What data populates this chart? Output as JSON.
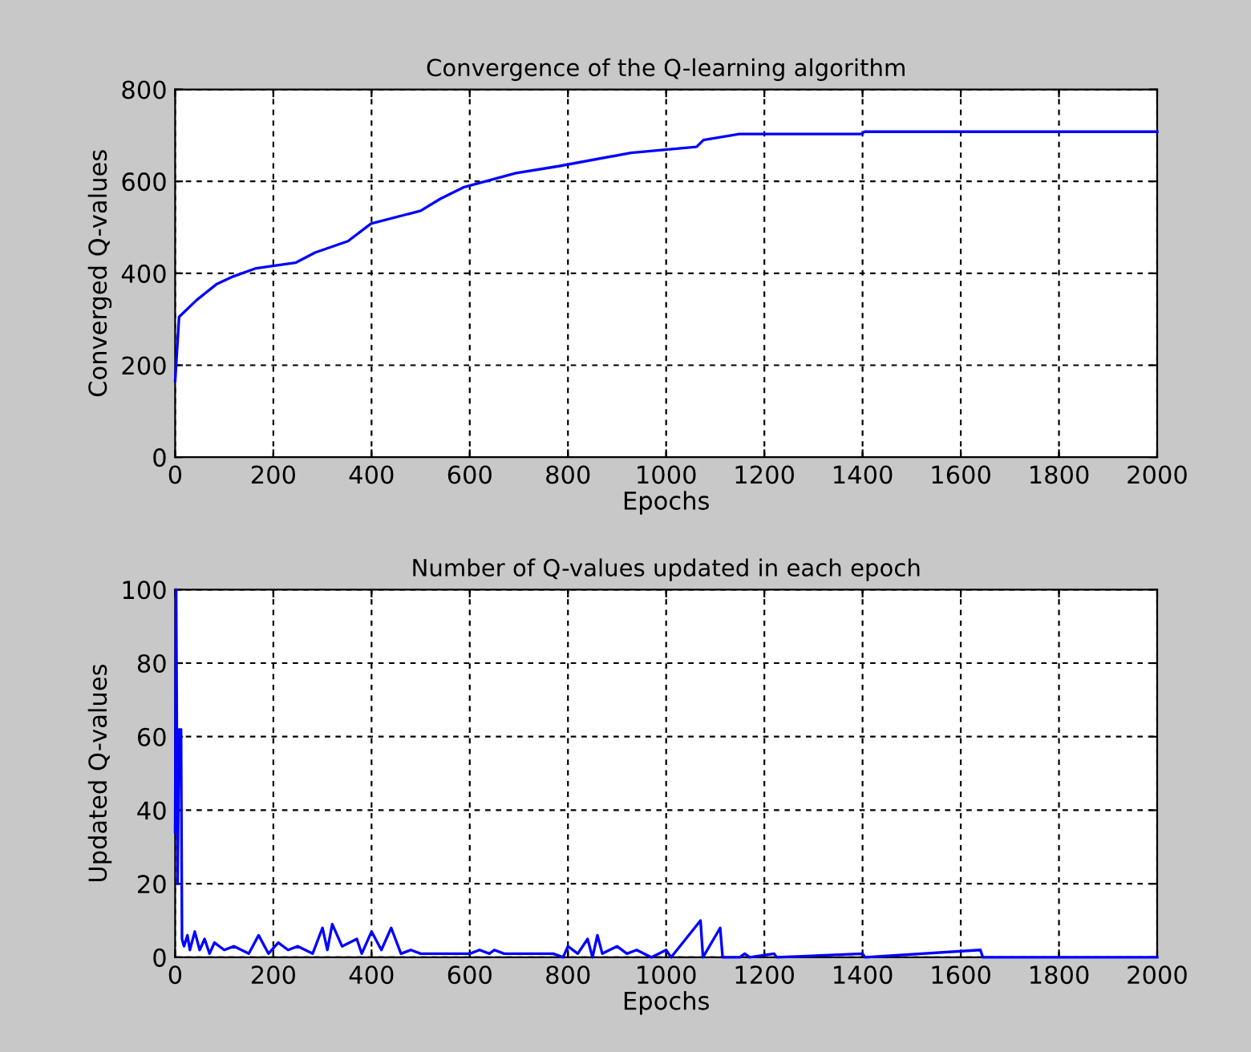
{
  "chart_data": [
    {
      "type": "line",
      "title": "Convergence of the Q-learning algorithm",
      "xlabel": "Epochs",
      "ylabel": "Converged Q-values",
      "xlim": [
        0,
        2000
      ],
      "ylim": [
        0,
        800
      ],
      "xticks": [
        0,
        200,
        400,
        600,
        800,
        1000,
        1200,
        1400,
        1600,
        1800,
        2000
      ],
      "yticks": [
        0,
        200,
        400,
        600,
        800
      ],
      "grid": true,
      "series": [
        {
          "color": "#0000ff",
          "x": [
            0,
            8,
            44,
            84,
            118,
            165,
            245,
            285,
            352,
            399,
            500,
            540,
            587,
            694,
            781,
            928,
            1062,
            1076,
            1149,
            1397,
            1404,
            2000
          ],
          "values": [
            166,
            305,
            342,
            376,
            393,
            411,
            423,
            445,
            470,
            508,
            536,
            562,
            587,
            618,
            633,
            662,
            675,
            690,
            703,
            703,
            708,
            708
          ]
        }
      ]
    },
    {
      "type": "line",
      "title": "Number of Q-values updated in each epoch",
      "xlabel": "Epochs",
      "ylabel": "Updated Q-values",
      "xlim": [
        0,
        2000
      ],
      "ylim": [
        0,
        100
      ],
      "xticks": [
        0,
        200,
        400,
        600,
        800,
        1000,
        1200,
        1400,
        1600,
        1800,
        2000
      ],
      "yticks": [
        0,
        20,
        40,
        60,
        80,
        100
      ],
      "grid": true,
      "series": [
        {
          "color": "#0000ff",
          "x": [
            0,
            2,
            5,
            8,
            10,
            12,
            14,
            18,
            25,
            30,
            40,
            50,
            60,
            70,
            80,
            100,
            120,
            150,
            170,
            190,
            210,
            230,
            250,
            280,
            300,
            310,
            320,
            340,
            370,
            380,
            400,
            420,
            440,
            460,
            480,
            500,
            550,
            600,
            620,
            640,
            650,
            670,
            700,
            750,
            770,
            790,
            800,
            820,
            840,
            850,
            860,
            870,
            900,
            920,
            940,
            970,
            1000,
            1010,
            1070,
            1075,
            1110,
            1115,
            1150,
            1160,
            1170,
            1220,
            1225,
            1400,
            1405,
            1640,
            1645,
            2000
          ],
          "values": [
            34,
            100,
            20,
            62,
            55,
            62,
            5,
            3,
            6,
            2,
            7,
            2,
            5,
            1,
            4,
            2,
            3,
            1,
            6,
            1,
            4,
            2,
            3,
            1,
            8,
            2,
            9,
            3,
            5,
            1,
            7,
            2,
            8,
            1,
            2,
            1,
            1,
            1,
            2,
            1,
            2,
            1,
            1,
            1,
            1,
            0,
            3,
            1,
            5,
            0,
            6,
            1,
            3,
            1,
            2,
            0,
            2,
            0,
            10,
            0,
            8,
            0,
            0,
            1,
            0,
            1,
            0,
            1,
            0,
            2,
            0,
            0
          ]
        }
      ]
    }
  ]
}
